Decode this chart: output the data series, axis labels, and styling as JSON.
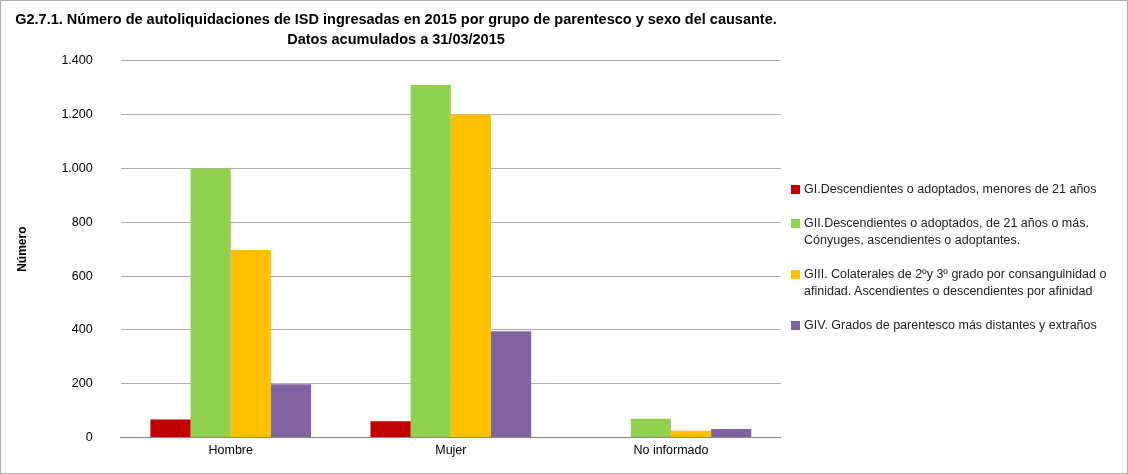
{
  "chart_data": {
    "type": "bar",
    "title": "G2.7.1. Número de autoliquidaciones de ISD ingresadas en 2015 por grupo de parentesco y sexo del causante.",
    "subtitle": "Datos acumulados a 31/03/2015",
    "ylabel": "Número",
    "categories": [
      "Hombre",
      "Mujer",
      "No informado"
    ],
    "series": [
      {
        "name": "GI.Descendientes o adoptados, menores de 21 años",
        "color": "#c00000",
        "values": [
          67,
          60,
          0
        ]
      },
      {
        "name": "GII.Descendientes o adoptados, de 21 años o más. Cónyuges, ascendientes o adoptantes.",
        "color": "#92d050",
        "values": [
          1000,
          1310,
          70
        ]
      },
      {
        "name": "GIII. Colaterales de 2ºy 3º grado por consanguinidad o afinidad. Ascendientes o descendientes por afinidad",
        "color": "#ffc000",
        "values": [
          697,
          1200,
          25
        ]
      },
      {
        "name": "GIV. Grados de parentesco más distantes y extraños",
        "color": "#8064a2",
        "values": [
          198,
          395,
          32
        ]
      }
    ],
    "ylim": [
      0,
      1400
    ],
    "yticks": [
      {
        "value": 0,
        "label": "0"
      },
      {
        "value": 200,
        "label": "200"
      },
      {
        "value": 400,
        "label": "400"
      },
      {
        "value": 600,
        "label": "600"
      },
      {
        "value": 800,
        "label": "800"
      },
      {
        "value": 1000,
        "label": "1.000"
      },
      {
        "value": 1200,
        "label": "1.200"
      },
      {
        "value": 1400,
        "label": "1.400"
      }
    ],
    "grid": "y",
    "legend": "right"
  }
}
